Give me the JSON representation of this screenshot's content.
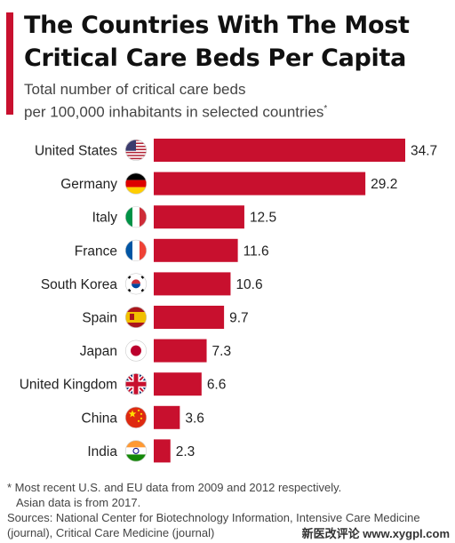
{
  "chart_data": {
    "type": "bar",
    "orientation": "horizontal",
    "title_line1": "The Countries With The Most",
    "title_line2": "Critical Care Beds Per Capita",
    "subtitle_line1": "Total number of critical care beds",
    "subtitle_line2": "per 100,000 inhabitants in selected countries",
    "subtitle_mark": "*",
    "categories": [
      "United States",
      "Germany",
      "Italy",
      "France",
      "South Korea",
      "Spain",
      "Japan",
      "United Kingdom",
      "China",
      "India"
    ],
    "values": [
      34.7,
      29.2,
      12.5,
      11.6,
      10.6,
      9.7,
      7.3,
      6.6,
      3.6,
      2.3
    ],
    "value_labels": [
      "34.7",
      "29.2",
      "12.5",
      "11.6",
      "10.6",
      "9.7",
      "7.3",
      "6.6",
      "3.6",
      "2.3"
    ],
    "flag_icons": [
      "us-flag-icon",
      "germany-flag-icon",
      "italy-flag-icon",
      "france-flag-icon",
      "south-korea-flag-icon",
      "spain-flag-icon",
      "japan-flag-icon",
      "uk-flag-icon",
      "china-flag-icon",
      "india-flag-icon"
    ],
    "bar_color": "#c8102e",
    "xlim": [
      0,
      34.7
    ],
    "grid": false,
    "legend": "none"
  },
  "footnote": {
    "line1": "* Most recent U.S. and EU data from 2009 and 2012 respectively.",
    "line2": "Asian data is from 2017.",
    "sources_line1": "Sources: National Center for Biotechnology Information, Intensive Care Medicine",
    "sources_line2": "(journal), Critical Care Medicine (journal)"
  },
  "watermark": "新医改评论 www.xygpl.com",
  "colors": {
    "accent": "#c8102e",
    "title": "#111111",
    "text": "#444444"
  }
}
